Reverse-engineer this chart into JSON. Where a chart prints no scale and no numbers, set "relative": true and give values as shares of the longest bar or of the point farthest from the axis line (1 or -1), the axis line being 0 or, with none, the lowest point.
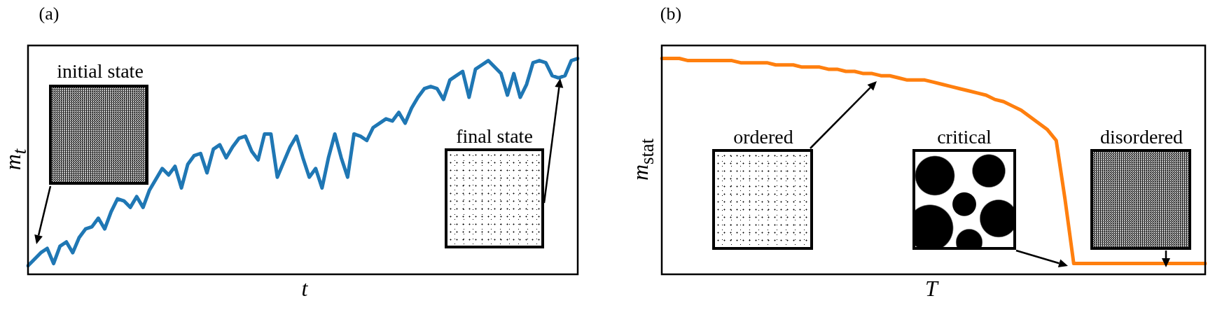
{
  "chart_data": [
    {
      "type": "line",
      "title": "(a)",
      "xlabel": "t",
      "ylabel": "m$_{t}$",
      "relative": true,
      "categories": [
        null,
        null,
        null,
        null,
        null,
        null,
        null,
        null,
        null,
        null,
        null,
        null,
        null,
        null,
        null,
        null,
        null,
        null,
        null,
        null,
        null,
        null,
        null,
        null,
        null,
        null,
        null,
        null,
        null,
        null,
        null,
        null,
        null,
        null,
        null,
        null,
        null,
        null,
        null,
        null,
        null,
        null,
        null,
        null,
        null,
        null,
        null,
        null,
        null,
        null,
        null,
        null,
        null,
        null,
        null,
        null,
        null,
        null,
        null,
        null,
        null,
        null,
        null,
        null,
        null,
        null,
        null,
        null,
        null,
        null,
        null,
        null,
        null,
        null,
        null,
        null,
        null,
        null,
        null,
        null,
        null,
        null,
        null,
        null,
        null,
        null,
        null
      ],
      "series": [
        {
          "color": "#1f77b4",
          "values": [
            0.04,
            0.07,
            0.1,
            0.12,
            0.05,
            0.13,
            0.15,
            0.1,
            0.17,
            0.21,
            0.22,
            0.26,
            0.21,
            0.29,
            0.35,
            0.34,
            0.31,
            0.36,
            0.31,
            0.39,
            0.44,
            0.49,
            0.46,
            0.5,
            0.4,
            0.51,
            0.55,
            0.56,
            0.47,
            0.58,
            0.6,
            0.54,
            0.59,
            0.63,
            0.64,
            0.57,
            0.53,
            0.65,
            0.65,
            0.45,
            0.52,
            0.59,
            0.64,
            0.54,
            0.45,
            0.49,
            0.4,
            0.54,
            0.65,
            0.54,
            0.45,
            0.65,
            0.64,
            0.62,
            0.68,
            0.7,
            0.72,
            0.71,
            0.75,
            0.7,
            0.77,
            0.82,
            0.86,
            0.87,
            0.86,
            0.81,
            0.9,
            0.92,
            0.94,
            0.82,
            0.95,
            0.97,
            0.99,
            0.96,
            0.93,
            0.83,
            0.93,
            0.82,
            0.88,
            0.98,
            0.99,
            0.98,
            0.92,
            0.91,
            0.92,
            0.99,
            1
          ]
        }
      ],
      "annotations": [
        "initial state",
        "final state"
      ],
      "legend": false
    },
    {
      "type": "line",
      "title": "(b)",
      "xlabel": "T",
      "ylabel": "m$_{stat}$",
      "relative": true,
      "categories": [
        null,
        null,
        null,
        null,
        null,
        null,
        null,
        null,
        null,
        null,
        null,
        null,
        null,
        null,
        null,
        null,
        null,
        null,
        null,
        null,
        null,
        null,
        null,
        null,
        null,
        null,
        null,
        null,
        null,
        null,
        null,
        null,
        null,
        null,
        null,
        null,
        null,
        null,
        null,
        null,
        null,
        null,
        null,
        null,
        null,
        null,
        null,
        null,
        null,
        null,
        null,
        null,
        null,
        null,
        null,
        null,
        null,
        null,
        null,
        null,
        null,
        null,
        null
      ],
      "series": [
        {
          "color": "#ff7f0e",
          "values": [
            1,
            1,
            1,
            0.99,
            0.99,
            0.99,
            0.99,
            0.99,
            0.99,
            0.98,
            0.98,
            0.98,
            0.98,
            0.97,
            0.97,
            0.97,
            0.96,
            0.96,
            0.96,
            0.95,
            0.95,
            0.94,
            0.94,
            0.93,
            0.93,
            0.92,
            0.92,
            0.91,
            0.9,
            0.9,
            0.9,
            0.89,
            0.88,
            0.87,
            0.86,
            0.85,
            0.84,
            0.83,
            0.81,
            0.8,
            0.78,
            0.76,
            0.73,
            0.7,
            0.67,
            0.62,
            0.35,
            0.05,
            0.05,
            0.05,
            0.05,
            0.05,
            0.05,
            0.05,
            0.05,
            0.05,
            0.05,
            0.05,
            0.05,
            0.05,
            0.05,
            0.05,
            0.05
          ]
        }
      ],
      "annotations": [
        "ordered",
        "critical",
        "disordered"
      ],
      "legend": false
    }
  ]
}
